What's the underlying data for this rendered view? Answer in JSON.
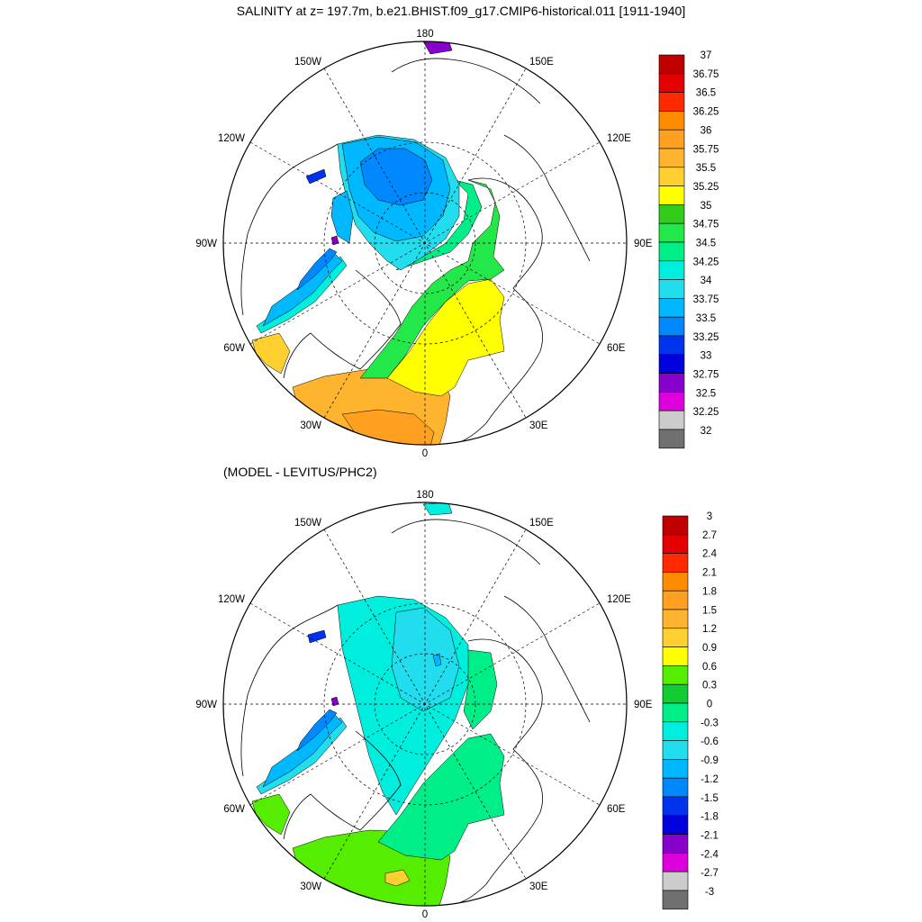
{
  "figure": {
    "title": "SALINITY at z= 197.7m, b.e21.BHIST.f09_g17.CMIP6-historical.011 [1911-1940]",
    "subtitle": "(MODEL - LEVITUS/PHC2)"
  },
  "longitude_labels": {
    "top": "180",
    "bottom": "0",
    "left": "90W",
    "right": "90E",
    "upper_left_1": "150W",
    "upper_left_2": "120W",
    "lower_left_1": "60W",
    "lower_left_2": "30W",
    "upper_right_1": "150E",
    "upper_right_2": "120E",
    "lower_right_1": "60E",
    "lower_right_2": "30E"
  },
  "colorbars": {
    "salinity": {
      "labels": [
        "37",
        "36.75",
        "36.5",
        "36.25",
        "36",
        "35.75",
        "35.5",
        "35.25",
        "35",
        "34.75",
        "34.5",
        "34.25",
        "34",
        "33.75",
        "33.5",
        "33.25",
        "33",
        "32.75",
        "32.5",
        "32.25",
        "32"
      ],
      "colors": [
        "#c00000",
        "#e40000",
        "#ff2a00",
        "#ff8c00",
        "#ffa020",
        "#ffb430",
        "#ffd030",
        "#ffff00",
        "#33cc1a",
        "#22e84a",
        "#00ee88",
        "#00eedd",
        "#22ddee",
        "#00b8ff",
        "#0088ff",
        "#0033ee",
        "#0000dd",
        "#8800cc",
        "#dd00dd",
        "#cccccc",
        "#707070"
      ]
    },
    "difference": {
      "labels": [
        "3",
        "2.7",
        "2.4",
        "2.1",
        "1.8",
        "1.5",
        "1.2",
        "0.9",
        "0.6",
        "0.3",
        "0",
        "-0.3",
        "-0.6",
        "-0.9",
        "-1.2",
        "-1.5",
        "-1.8",
        "-2.1",
        "-2.4",
        "-2.7",
        "-3"
      ],
      "colors": [
        "#c00000",
        "#e40000",
        "#ff2a00",
        "#ff8c00",
        "#ffa020",
        "#ffb430",
        "#ffd030",
        "#ffff00",
        "#55ee00",
        "#11cc33",
        "#00ee88",
        "#00eedd",
        "#22ddee",
        "#00b8ff",
        "#0088ff",
        "#0033ee",
        "#0000dd",
        "#8800cc",
        "#dd00dd",
        "#cccccc",
        "#707070"
      ]
    }
  },
  "map_fills": {
    "salinity": {
      "basin_outer": "#22ddee",
      "basin_inner": "#00b8ff",
      "basin_core": "#0088ff",
      "canada_shelf": "#00b8ff",
      "eurasian_rim": "#00ee88",
      "green_band": "#22e84a",
      "atlantic_inflow": "#ffff00",
      "barents": "#ffff00",
      "nordic_orange": "#ffb430",
      "nordic_deep": "#ffa020",
      "baffin_1": "#00eedd",
      "baffin_2": "#00b8ff",
      "baffin_3": "#0088ff",
      "labrador": "#ffd030",
      "blue_patch": "#0033ee",
      "purple_patch": "#8800cc"
    },
    "difference": {
      "basin_outer": "#00eedd",
      "basin_inner": "#22ddee",
      "basin_core": "#00b8ff",
      "eurasian_rim": "#00ee88",
      "atlantic": "#00ee88",
      "nordic": "#55ee00",
      "nordic_patch": "#ffd030",
      "baffin_1": "#22ddee",
      "baffin_2": "#00b8ff",
      "baffin_3": "#0088ff",
      "labrador": "#55ee00",
      "blue_patch": "#0033ee",
      "purple_patch": "#8800cc"
    }
  }
}
